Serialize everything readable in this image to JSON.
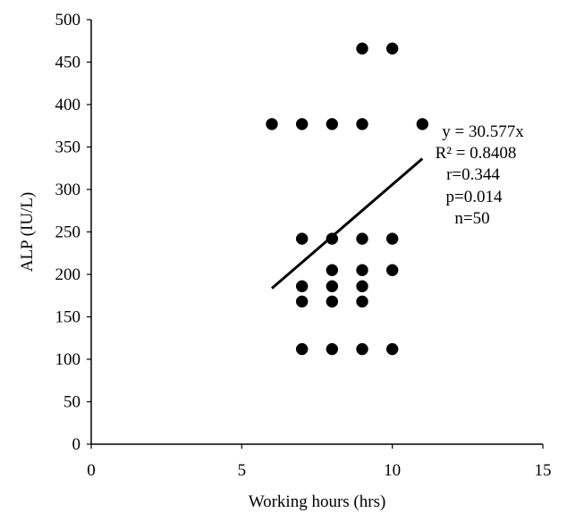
{
  "chart_data": {
    "type": "scatter",
    "title": "",
    "xlabel": "Working hours (hrs)",
    "ylabel": "ALP (IU/L)",
    "xlim": [
      0,
      15
    ],
    "ylim": [
      0,
      500
    ],
    "xticks": [
      0,
      5,
      10,
      15
    ],
    "yticks": [
      0,
      50,
      100,
      150,
      200,
      250,
      300,
      350,
      400,
      450,
      500
    ],
    "grid": false,
    "points": [
      {
        "x": 6,
        "y": 377
      },
      {
        "x": 7,
        "y": 377
      },
      {
        "x": 8,
        "y": 377
      },
      {
        "x": 9,
        "y": 377
      },
      {
        "x": 11,
        "y": 377
      },
      {
        "x": 9,
        "y": 466
      },
      {
        "x": 10,
        "y": 466
      },
      {
        "x": 7,
        "y": 242
      },
      {
        "x": 8,
        "y": 242
      },
      {
        "x": 9,
        "y": 242
      },
      {
        "x": 10,
        "y": 242
      },
      {
        "x": 8,
        "y": 205
      },
      {
        "x": 9,
        "y": 205
      },
      {
        "x": 10,
        "y": 205
      },
      {
        "x": 7,
        "y": 186
      },
      {
        "x": 8,
        "y": 186
      },
      {
        "x": 9,
        "y": 186
      },
      {
        "x": 7,
        "y": 168
      },
      {
        "x": 8,
        "y": 168
      },
      {
        "x": 9,
        "y": 168
      },
      {
        "x": 7,
        "y": 112
      },
      {
        "x": 8,
        "y": 112
      },
      {
        "x": 9,
        "y": 112
      },
      {
        "x": 10,
        "y": 112
      }
    ],
    "trendline": {
      "x": [
        6,
        11
      ],
      "y": [
        183.5,
        336.3
      ],
      "color": "#000000"
    },
    "annotations": [
      "y = 30.577x",
      "R² = 0.8408",
      "r=0.344",
      "p=0.014",
      "n=50"
    ],
    "colors": {
      "marker": "#000000",
      "axis": "#000000",
      "text": "#000000"
    }
  }
}
